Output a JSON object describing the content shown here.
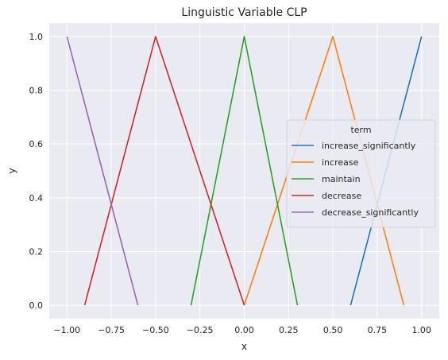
{
  "chart_data": {
    "type": "line",
    "title": "Linguistic Variable CLP",
    "xlabel": "x",
    "ylabel": "y",
    "xlim": [
      -1.1,
      1.1
    ],
    "ylim": [
      -0.05,
      1.05
    ],
    "grid": true,
    "background": "#eaeaf2",
    "xticks": [
      -1.0,
      -0.75,
      -0.5,
      -0.25,
      0.0,
      0.25,
      0.5,
      0.75,
      1.0
    ],
    "xtick_labels": [
      "−1.00",
      "−0.75",
      "−0.50",
      "−0.25",
      "0.00",
      "0.25",
      "0.50",
      "0.75",
      "1.00"
    ],
    "yticks": [
      0.0,
      0.2,
      0.4,
      0.6,
      0.8,
      1.0
    ],
    "ytick_labels": [
      "0.0",
      "0.2",
      "0.4",
      "0.6",
      "0.8",
      "1.0"
    ],
    "legend": {
      "title": "term",
      "placement": "center-right"
    },
    "series": [
      {
        "name": "increase_significantly",
        "color": "#1f77b4",
        "x": [
          0.6,
          1.0
        ],
        "y": [
          0.0,
          1.0
        ]
      },
      {
        "name": "increase",
        "color": "#ff7f0e",
        "x": [
          0.0,
          0.5,
          0.9
        ],
        "y": [
          0.0,
          1.0,
          0.0
        ]
      },
      {
        "name": "maintain",
        "color": "#2ca02c",
        "x": [
          -0.3,
          0.0,
          0.3
        ],
        "y": [
          0.0,
          1.0,
          0.0
        ]
      },
      {
        "name": "decrease",
        "color": "#d62728",
        "x": [
          -0.9,
          -0.5,
          0.0
        ],
        "y": [
          0.0,
          1.0,
          0.0
        ]
      },
      {
        "name": "decrease_significantly",
        "color": "#9467bd",
        "x": [
          -1.0,
          -0.6
        ],
        "y": [
          1.0,
          0.0
        ]
      }
    ]
  }
}
